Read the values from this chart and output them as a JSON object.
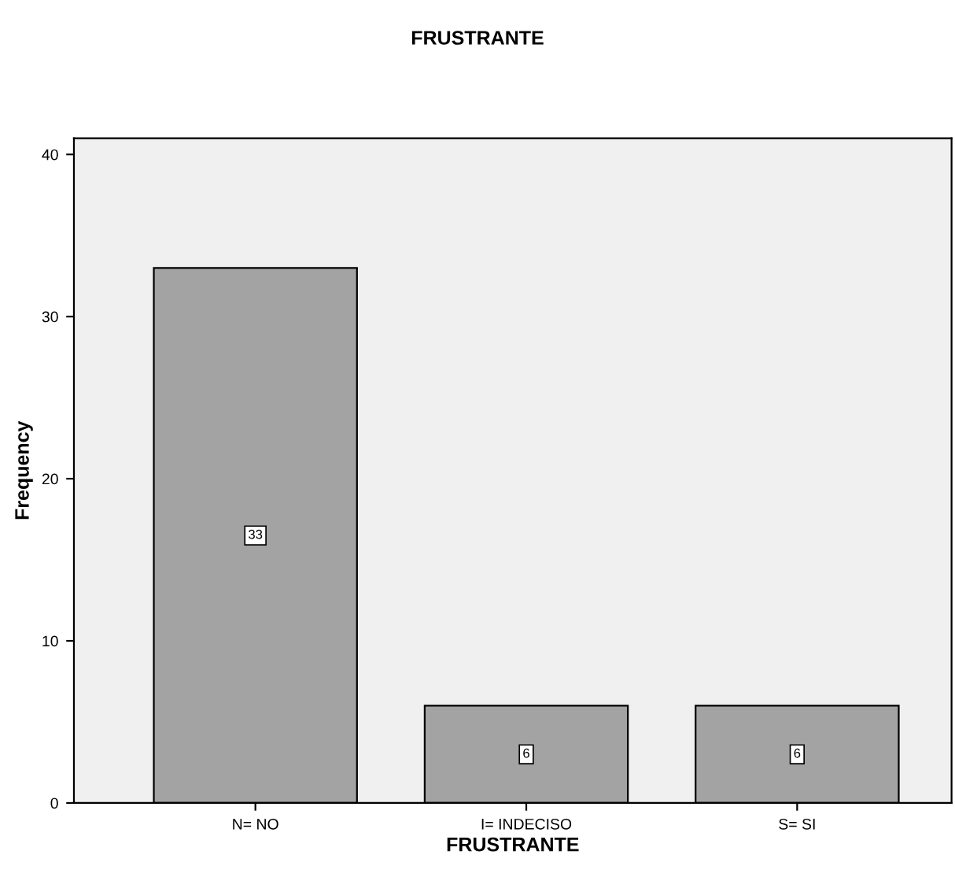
{
  "chart_data": {
    "type": "bar",
    "title": "FRUSTRANTE",
    "xlabel": "FRUSTRANTE",
    "ylabel": "Frequency",
    "categories": [
      "N= NO",
      "I= INDECISO",
      "S= SI"
    ],
    "values": [
      33,
      6,
      6
    ],
    "color": "#a3a3a3",
    "ylim": [
      0,
      41
    ],
    "yticks": [
      0,
      10,
      20,
      30,
      40
    ],
    "grid": false,
    "legend": false,
    "data_labels": true
  }
}
